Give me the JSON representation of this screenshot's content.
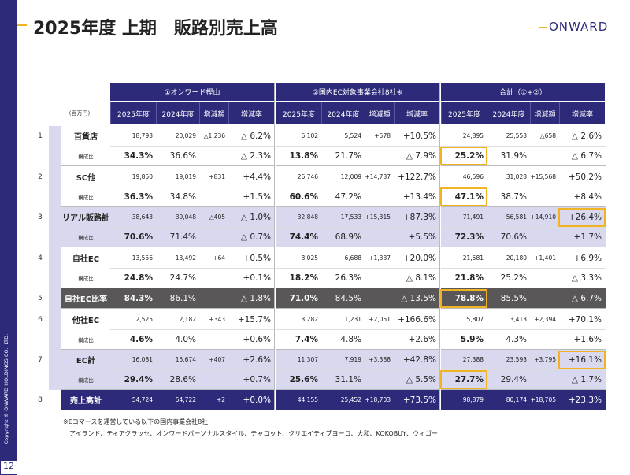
{
  "header": {
    "title": "2025年度 上期　販路別売上高",
    "logo": "ONWARD"
  },
  "table": {
    "unit": "(百万円)",
    "groups": [
      "①オンワード樫山",
      "②国内EC対象事業会社8社※",
      "合計（①+②）"
    ],
    "columns": [
      "2025年度",
      "2024年度",
      "増減額",
      "増減率"
    ],
    "rows": [
      {
        "no": "1",
        "label": "百貨店",
        "values": [
          "18,793",
          "20,029",
          "△1,236",
          "△ 6.2%",
          "6,102",
          "5,524",
          "+578",
          "+10.5%",
          "24,895",
          "25,553",
          "△658",
          "△ 2.6%"
        ],
        "ratio_label": "構成比",
        "ratio": [
          "34.3%",
          "36.6%",
          null,
          "△ 2.3%",
          "13.8%",
          "21.7%",
          null,
          "△ 7.9%",
          "25.2%",
          "31.9%",
          null,
          "△ 6.7%"
        ]
      },
      {
        "no": "2",
        "label": "SC他",
        "values": [
          "19,850",
          "19,019",
          "+831",
          "+4.4%",
          "26,746",
          "12,009",
          "+14,737",
          "+122.7%",
          "46,596",
          "31,028",
          "+15,568",
          "+50.2%"
        ],
        "ratio_label": "構成比",
        "ratio": [
          "36.3%",
          "34.8%",
          null,
          "+1.5%",
          "60.6%",
          "47.2%",
          null,
          "+13.4%",
          "47.1%",
          "38.7%",
          null,
          "+8.4%"
        ]
      },
      {
        "no": "3",
        "label": "リアル販路計",
        "values": [
          "38,643",
          "39,048",
          "△405",
          "△ 1.0%",
          "32,848",
          "17,533",
          "+15,315",
          "+87.3%",
          "71,491",
          "56,581",
          "+14,910",
          "+26.4%"
        ],
        "ratio_label": "構成比",
        "ratio": [
          "70.6%",
          "71.4%",
          null,
          "△ 0.7%",
          "74.4%",
          "68.9%",
          null,
          "+5.5%",
          "72.3%",
          "70.6%",
          null,
          "+1.7%"
        ]
      },
      {
        "no": "4",
        "label": "自社EC",
        "values": [
          "13,556",
          "13,492",
          "+64",
          "+0.5%",
          "8,025",
          "6,688",
          "+1,337",
          "+20.0%",
          "21,581",
          "20,180",
          "+1,401",
          "+6.9%"
        ],
        "ratio_label": "構成比",
        "ratio": [
          "24.8%",
          "24.7%",
          null,
          "+0.1%",
          "18.2%",
          "26.3%",
          null,
          "△ 8.1%",
          "21.8%",
          "25.2%",
          null,
          "△ 3.3%"
        ]
      },
      {
        "no": "5",
        "label": "自社EC比率",
        "values": [
          "84.3%",
          "86.1%",
          null,
          "△ 1.8%",
          "71.0%",
          "84.5%",
          null,
          "△ 13.5%",
          "78.8%",
          "85.5%",
          null,
          "△ 6.7%"
        ]
      },
      {
        "no": "6",
        "label": "他社EC",
        "values": [
          "2,525",
          "2,182",
          "+343",
          "+15.7%",
          "3,282",
          "1,231",
          "+2,051",
          "+166.6%",
          "5,807",
          "3,413",
          "+2,394",
          "+70.1%"
        ],
        "ratio_label": "構成比",
        "ratio": [
          "4.6%",
          "4.0%",
          null,
          "+0.6%",
          "7.4%",
          "4.8%",
          null,
          "+2.6%",
          "5.9%",
          "4.3%",
          null,
          "+1.6%"
        ]
      },
      {
        "no": "7",
        "label": "EC計",
        "values": [
          "16,081",
          "15,674",
          "+407",
          "+2.6%",
          "11,307",
          "7,919",
          "+3,388",
          "+42.8%",
          "27,388",
          "23,593",
          "+3,795",
          "+16.1%"
        ],
        "ratio_label": "構成比",
        "ratio": [
          "29.4%",
          "28.6%",
          null,
          "+0.7%",
          "25.6%",
          "31.1%",
          null,
          "△ 5.5%",
          "27.7%",
          "29.4%",
          null,
          "△ 1.7%"
        ]
      },
      {
        "no": "8",
        "label": "売上高計",
        "values": [
          "54,724",
          "54,722",
          "+2",
          "+0.0%",
          "44,155",
          "25,452",
          "+18,703",
          "+73.5%",
          "98,879",
          "80,174",
          "+18,705",
          "+23.3%"
        ]
      }
    ]
  },
  "footer": {
    "notes": [
      "※Eコマースを運営している以下の国内事業会社8社",
      "アイランド、ティアクラッセ、オンワードパーソナルスタイル、チャコット、クリエイティブヨーコ、大和、KOKOBUY、ウィゴー"
    ],
    "copyright": "Copyright © ONWARD HOLDINGS CO., LTD.",
    "page": "12"
  }
}
